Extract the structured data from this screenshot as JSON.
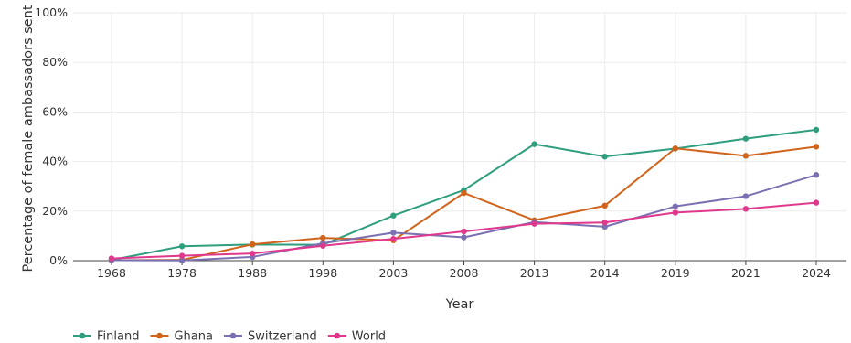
{
  "chart_data": {
    "type": "line",
    "xlabel": "Year",
    "ylabel": "Percentage of female ambassadors sent",
    "ylim": [
      0,
      100
    ],
    "y_ticks": [
      "0%",
      "20%",
      "40%",
      "60%",
      "80%",
      "100%"
    ],
    "y_tick_values": [
      0,
      20,
      40,
      60,
      80,
      100
    ],
    "categories": [
      "1968",
      "1978",
      "1988",
      "1998",
      "2003",
      "2008",
      "2013",
      "2014",
      "2019",
      "2021",
      "2024"
    ],
    "x_axis_scale": "categorical",
    "grid": true,
    "legend_position": "bottom-left",
    "series": [
      {
        "name": "Finland",
        "color": "#2e9e7e",
        "values": [
          0.3,
          5.8,
          6.5,
          6.4,
          18.2,
          28.5,
          47.0,
          42.0,
          45.2,
          49.2,
          52.8
        ]
      },
      {
        "name": "Ghana",
        "color": "#d1641c",
        "values": [
          0.2,
          0.3,
          6.6,
          9.2,
          8.2,
          27.3,
          16.3,
          22.2,
          45.3,
          42.3,
          46.0
        ]
      },
      {
        "name": "Switzerland",
        "color": "#7b70b2",
        "values": [
          0.2,
          0.1,
          1.5,
          7.0,
          11.3,
          9.4,
          15.6,
          13.7,
          21.9,
          26.0,
          34.6
        ]
      },
      {
        "name": "World",
        "color": "#e0388c",
        "values": [
          0.9,
          2.0,
          2.9,
          6.0,
          8.8,
          11.8,
          14.9,
          15.4,
          19.4,
          20.9,
          23.4
        ]
      }
    ]
  }
}
